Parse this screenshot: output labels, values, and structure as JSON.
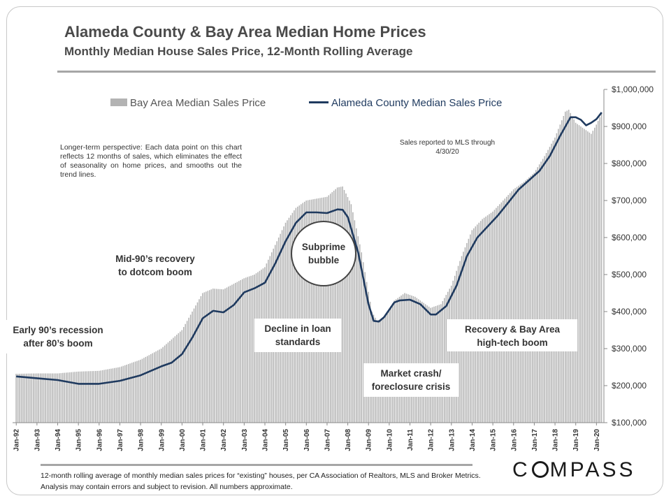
{
  "header": {
    "title": "Alameda County & Bay Area Median Home Prices",
    "subtitle": "Monthly Median House Sales Price, 12-Month Rolling Average"
  },
  "notes": {
    "perspective": "Longer-term perspective: Each data point on this chart reflects 12 months of sales, which eliminates the effect of seasonality on home prices, and smooths out the trend lines.",
    "sales_reported": "Sales reported to MLS through 4/30/20",
    "footnote": "12-month rolling average of monthly median sales prices for “existing” houses, per CA Association of Realtors, MLS and Broker Metrics. Analysis may contain errors and subject to revision. All numbers approximate."
  },
  "annotations": {
    "early90s": [
      "Early 90’s recession",
      "after 80’s boom"
    ],
    "mid90s": [
      "Mid-90’s recovery",
      "to dotcom boom"
    ],
    "subprime": [
      "Subprime",
      "bubble"
    ],
    "decline": [
      "Decline in loan",
      "standards"
    ],
    "crash": [
      "Market crash/",
      "foreclosure crisis"
    ],
    "recovery": [
      "Recovery & Bay Area",
      "high-tech boom"
    ]
  },
  "brand": {
    "logo": "COMPASS"
  },
  "colors": {
    "bars": "#b3b3b3",
    "line": "#1f3a5f",
    "rule": "#a6a6a6"
  },
  "chart_data": {
    "type": "bar+line",
    "title": "Alameda County & Bay Area Median Home Prices",
    "legend": {
      "placement": "top",
      "entries": [
        "Bay Area Median Sales Price",
        "Alameda County Median Sales Price"
      ]
    },
    "y_axis": {
      "position": "right",
      "ylim": [
        100000,
        1000000
      ],
      "ticks": [
        100000,
        200000,
        300000,
        400000,
        500000,
        600000,
        700000,
        800000,
        900000,
        1000000
      ],
      "tick_labels": [
        "$100,000",
        "$200,000",
        "$300,000",
        "$400,000",
        "$500,000",
        "$600,000",
        "$700,000",
        "$800,000",
        "$900,000",
        "$1,000,000"
      ]
    },
    "x_axis": {
      "start": "1992-01",
      "end": "2020-04",
      "tick_labels": [
        "Jan-92",
        "Jan-93",
        "Jan-94",
        "Jan-95",
        "Jan-96",
        "Jan-97",
        "Jan-98",
        "Jan-99",
        "Jan-00",
        "Jan-01",
        "Jan-02",
        "Jan-03",
        "Jan-04",
        "Jan-05",
        "Jan-06",
        "Jan-07",
        "Jan-08",
        "Jan-09",
        "Jan-10",
        "Jan-11",
        "Jan-12",
        "Jan-13",
        "Jan-14",
        "Jan-15",
        "Jan-16",
        "Jan-17",
        "Jan-18",
        "Jan-19",
        "Jan-20"
      ]
    },
    "series": [
      {
        "name": "Bay Area Median Sales Price",
        "kind": "bar",
        "monthly_interpolated_from": [
          [
            "1992-01",
            232000
          ],
          [
            "1993-01",
            233000
          ],
          [
            "1994-01",
            233000
          ],
          [
            "1995-01",
            238000
          ],
          [
            "1996-01",
            240000
          ],
          [
            "1997-01",
            250000
          ],
          [
            "1998-01",
            270000
          ],
          [
            "1999-01",
            300000
          ],
          [
            "2000-01",
            350000
          ],
          [
            "2000-07",
            400000
          ],
          [
            "2001-01",
            450000
          ],
          [
            "2001-07",
            462000
          ],
          [
            "2002-01",
            460000
          ],
          [
            "2002-07",
            475000
          ],
          [
            "2003-01",
            490000
          ],
          [
            "2003-07",
            500000
          ],
          [
            "2004-01",
            520000
          ],
          [
            "2004-07",
            580000
          ],
          [
            "2005-01",
            640000
          ],
          [
            "2005-07",
            680000
          ],
          [
            "2006-01",
            700000
          ],
          [
            "2006-07",
            705000
          ],
          [
            "2007-01",
            710000
          ],
          [
            "2007-07",
            735000
          ],
          [
            "2007-10",
            738000
          ],
          [
            "2008-03",
            690000
          ],
          [
            "2008-09",
            560000
          ],
          [
            "2009-03",
            400000
          ],
          [
            "2009-06",
            375000
          ],
          [
            "2009-10",
            385000
          ],
          [
            "2010-04",
            430000
          ],
          [
            "2010-10",
            450000
          ],
          [
            "2011-04",
            440000
          ],
          [
            "2011-10",
            420000
          ],
          [
            "2012-01",
            410000
          ],
          [
            "2012-07",
            420000
          ],
          [
            "2013-01",
            470000
          ],
          [
            "2013-07",
            550000
          ],
          [
            "2014-01",
            620000
          ],
          [
            "2014-07",
            650000
          ],
          [
            "2015-01",
            670000
          ],
          [
            "2015-07",
            700000
          ],
          [
            "2016-01",
            730000
          ],
          [
            "2016-07",
            750000
          ],
          [
            "2017-01",
            775000
          ],
          [
            "2017-07",
            820000
          ],
          [
            "2018-01",
            870000
          ],
          [
            "2018-07",
            940000
          ],
          [
            "2018-09",
            945000
          ],
          [
            "2019-01",
            910000
          ],
          [
            "2019-07",
            890000
          ],
          [
            "2019-10",
            880000
          ],
          [
            "2020-01",
            905000
          ],
          [
            "2020-04",
            935000
          ]
        ]
      },
      {
        "name": "Alameda County Median Sales Price",
        "kind": "line",
        "points": [
          [
            "1992-01",
            225000
          ],
          [
            "1993-01",
            220000
          ],
          [
            "1994-01",
            215000
          ],
          [
            "1995-01",
            205000
          ],
          [
            "1996-01",
            205000
          ],
          [
            "1997-01",
            213000
          ],
          [
            "1998-01",
            228000
          ],
          [
            "1999-01",
            252000
          ],
          [
            "1999-07",
            262000
          ],
          [
            "2000-01",
            285000
          ],
          [
            "2000-07",
            330000
          ],
          [
            "2001-01",
            382000
          ],
          [
            "2001-07",
            402000
          ],
          [
            "2002-01",
            398000
          ],
          [
            "2002-07",
            418000
          ],
          [
            "2003-01",
            452000
          ],
          [
            "2003-07",
            463000
          ],
          [
            "2004-01",
            478000
          ],
          [
            "2004-07",
            530000
          ],
          [
            "2005-01",
            590000
          ],
          [
            "2005-07",
            640000
          ],
          [
            "2006-01",
            668000
          ],
          [
            "2006-07",
            668000
          ],
          [
            "2007-01",
            666000
          ],
          [
            "2007-07",
            676000
          ],
          [
            "2007-10",
            675000
          ],
          [
            "2008-01",
            655000
          ],
          [
            "2008-07",
            560000
          ],
          [
            "2009-01",
            420000
          ],
          [
            "2009-04",
            375000
          ],
          [
            "2009-07",
            373000
          ],
          [
            "2009-10",
            385000
          ],
          [
            "2010-04",
            425000
          ],
          [
            "2010-07",
            430000
          ],
          [
            "2011-01",
            432000
          ],
          [
            "2011-07",
            420000
          ],
          [
            "2012-01",
            392000
          ],
          [
            "2012-04",
            392000
          ],
          [
            "2012-10",
            415000
          ],
          [
            "2013-04",
            470000
          ],
          [
            "2013-10",
            550000
          ],
          [
            "2014-04",
            600000
          ],
          [
            "2014-10",
            630000
          ],
          [
            "2015-04",
            660000
          ],
          [
            "2015-10",
            695000
          ],
          [
            "2016-04",
            730000
          ],
          [
            "2016-10",
            755000
          ],
          [
            "2017-04",
            780000
          ],
          [
            "2017-10",
            820000
          ],
          [
            "2018-04",
            875000
          ],
          [
            "2018-10",
            925000
          ],
          [
            "2019-01",
            925000
          ],
          [
            "2019-04",
            918000
          ],
          [
            "2019-07",
            903000
          ],
          [
            "2019-10",
            910000
          ],
          [
            "2020-01",
            920000
          ],
          [
            "2020-04",
            938000
          ]
        ]
      }
    ]
  }
}
